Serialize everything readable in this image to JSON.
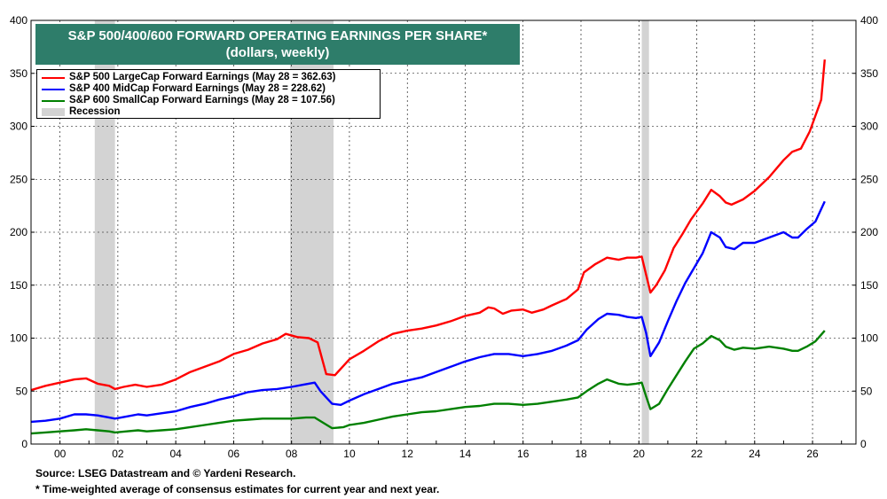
{
  "title": {
    "line1": "S&P 500/400/600 FORWARD OPERATING EARNINGS PER SHARE*",
    "line2": "(dollars, weekly)"
  },
  "legend": {
    "items": [
      {
        "label": "S&P 500 LargeCap Forward Earnings (May 28 = 362.63)",
        "color": "#ff0000"
      },
      {
        "label": "S&P 400 MidCap Forward Earnings (May 28 = 228.62)",
        "color": "#0000ff"
      },
      {
        "label": "S&P 600 SmallCap Forward Earnings (May 28 = 107.56)",
        "color": "#008000"
      },
      {
        "label": "Recession",
        "color": "#d3d3d3"
      }
    ]
  },
  "footer": {
    "source": "Source: LSEG Datastream and © Yardeni Research.",
    "note": "* Time-weighted average of consensus estimates for current year and next year."
  },
  "chart_data": {
    "type": "line",
    "title": "S&P 500/400/600 FORWARD OPERATING EARNINGS PER SHARE*",
    "subtitle": "(dollars, weekly)",
    "xlabel": "",
    "ylabel": "",
    "xlim": [
      1999.0,
      2027.5
    ],
    "ylim": [
      0,
      400
    ],
    "yticks": [
      0,
      50,
      100,
      150,
      200,
      250,
      300,
      350,
      400
    ],
    "xticks": [
      2000,
      2002,
      2004,
      2006,
      2008,
      2010,
      2012,
      2014,
      2016,
      2018,
      2020,
      2022,
      2024,
      2026
    ],
    "xtick_labels": [
      "00",
      "02",
      "04",
      "06",
      "08",
      "10",
      "12",
      "14",
      "16",
      "18",
      "20",
      "22",
      "24",
      "26"
    ],
    "grid": true,
    "legend_position": "top-left",
    "recessions": [
      [
        2001.2,
        2001.9
      ],
      [
        2007.95,
        2009.45
      ],
      [
        2020.1,
        2020.35
      ]
    ],
    "series": [
      {
        "name": "S&P 500 LargeCap Forward Earnings (May 28 = 362.63)",
        "color": "#ff0000",
        "x": [
          1999.0,
          1999.5,
          2000.0,
          2000.5,
          2000.9,
          2001.3,
          2001.7,
          2001.9,
          2002.2,
          2002.6,
          2003.0,
          2003.5,
          2004.0,
          2004.5,
          2005.0,
          2005.5,
          2006.0,
          2006.5,
          2007.0,
          2007.5,
          2007.8,
          2008.2,
          2008.6,
          2008.9,
          2009.2,
          2009.5,
          2010.0,
          2010.5,
          2011.0,
          2011.5,
          2012.0,
          2012.5,
          2013.0,
          2013.5,
          2014.0,
          2014.5,
          2014.8,
          2015.0,
          2015.3,
          2015.6,
          2016.0,
          2016.3,
          2016.7,
          2017.0,
          2017.5,
          2017.9,
          2018.1,
          2018.5,
          2018.9,
          2019.3,
          2019.6,
          2019.9,
          2020.1,
          2020.25,
          2020.4,
          2020.6,
          2020.9,
          2021.2,
          2021.5,
          2021.8,
          2022.2,
          2022.5,
          2022.8,
          2023.0,
          2023.2,
          2023.6,
          2024.0,
          2024.5,
          2025.0,
          2025.3,
          2025.6,
          2025.9,
          2026.1,
          2026.3,
          2026.42
        ],
        "values": [
          51,
          55,
          58,
          61,
          62,
          57,
          55,
          52,
          54,
          56,
          54,
          56,
          61,
          68,
          73,
          78,
          85,
          89,
          95,
          99,
          104,
          101,
          100,
          96,
          66,
          65,
          80,
          88,
          97,
          104,
          107,
          109,
          112,
          116,
          121,
          124,
          129,
          128,
          123,
          126,
          127,
          124,
          127,
          131,
          137,
          146,
          162,
          170,
          176,
          174,
          176,
          176,
          177,
          160,
          143,
          150,
          164,
          185,
          198,
          212,
          227,
          240,
          234,
          228,
          226,
          231,
          239,
          252,
          268,
          276,
          279,
          295,
          310,
          325,
          363
        ]
      },
      {
        "name": "S&P 400 MidCap Forward Earnings (May 28 = 228.62)",
        "color": "#0000ff",
        "x": [
          1999.0,
          1999.5,
          2000.0,
          2000.5,
          2000.9,
          2001.3,
          2001.7,
          2001.9,
          2002.3,
          2002.7,
          2003.0,
          2003.5,
          2004.0,
          2004.5,
          2005.0,
          2005.5,
          2006.0,
          2006.5,
          2007.0,
          2007.5,
          2008.0,
          2008.4,
          2008.8,
          2009.0,
          2009.4,
          2009.7,
          2010.0,
          2010.5,
          2011.0,
          2011.5,
          2012.0,
          2012.5,
          2013.0,
          2013.5,
          2014.0,
          2014.5,
          2015.0,
          2015.5,
          2016.0,
          2016.5,
          2017.0,
          2017.5,
          2017.9,
          2018.2,
          2018.6,
          2018.9,
          2019.3,
          2019.6,
          2019.9,
          2020.1,
          2020.25,
          2020.4,
          2020.7,
          2021.0,
          2021.3,
          2021.6,
          2021.9,
          2022.2,
          2022.5,
          2022.8,
          2023.0,
          2023.3,
          2023.6,
          2024.0,
          2024.5,
          2025.0,
          2025.3,
          2025.5,
          2025.8,
          2026.1,
          2026.42
        ],
        "values": [
          21,
          22,
          24,
          28,
          28,
          27,
          25,
          24,
          26,
          28,
          27,
          29,
          31,
          35,
          38,
          42,
          45,
          49,
          51,
          52,
          54,
          56,
          58,
          50,
          38,
          37,
          41,
          47,
          52,
          57,
          60,
          63,
          68,
          73,
          78,
          82,
          85,
          85,
          83,
          85,
          88,
          93,
          98,
          108,
          118,
          123,
          122,
          120,
          119,
          120,
          105,
          83,
          96,
          116,
          135,
          152,
          166,
          180,
          200,
          195,
          186,
          184,
          190,
          190,
          195,
          200,
          195,
          195,
          203,
          210,
          229
        ]
      },
      {
        "name": "S&P 600 SmallCap Forward Earnings (May 28 = 107.56)",
        "color": "#008000",
        "x": [
          1999.0,
          1999.5,
          2000.0,
          2000.5,
          2000.9,
          2001.3,
          2001.7,
          2001.9,
          2002.3,
          2002.7,
          2003.0,
          2003.5,
          2004.0,
          2004.5,
          2005.0,
          2005.5,
          2006.0,
          2006.5,
          2007.0,
          2007.5,
          2008.0,
          2008.5,
          2008.8,
          2009.1,
          2009.4,
          2009.8,
          2010.0,
          2010.5,
          2011.0,
          2011.5,
          2012.0,
          2012.5,
          2013.0,
          2013.5,
          2014.0,
          2014.5,
          2015.0,
          2015.5,
          2016.0,
          2016.5,
          2017.0,
          2017.5,
          2017.9,
          2018.2,
          2018.6,
          2018.9,
          2019.3,
          2019.6,
          2019.9,
          2020.1,
          2020.25,
          2020.4,
          2020.7,
          2021.0,
          2021.3,
          2021.6,
          2021.9,
          2022.2,
          2022.5,
          2022.8,
          2023.0,
          2023.3,
          2023.6,
          2024.0,
          2024.5,
          2025.0,
          2025.3,
          2025.5,
          2025.8,
          2026.1,
          2026.42
        ],
        "values": [
          10,
          11,
          12,
          13,
          14,
          13,
          12,
          11,
          12,
          13,
          12,
          13,
          14,
          16,
          18,
          20,
          22,
          23,
          24,
          24,
          24,
          25,
          25,
          20,
          15,
          16,
          18,
          20,
          23,
          26,
          28,
          30,
          31,
          33,
          35,
          36,
          38,
          38,
          37,
          38,
          40,
          42,
          44,
          50,
          57,
          61,
          57,
          56,
          57,
          58,
          45,
          33,
          38,
          52,
          65,
          78,
          90,
          95,
          102,
          98,
          92,
          89,
          91,
          90,
          92,
          90,
          88,
          88,
          92,
          97,
          107
        ]
      }
    ]
  }
}
